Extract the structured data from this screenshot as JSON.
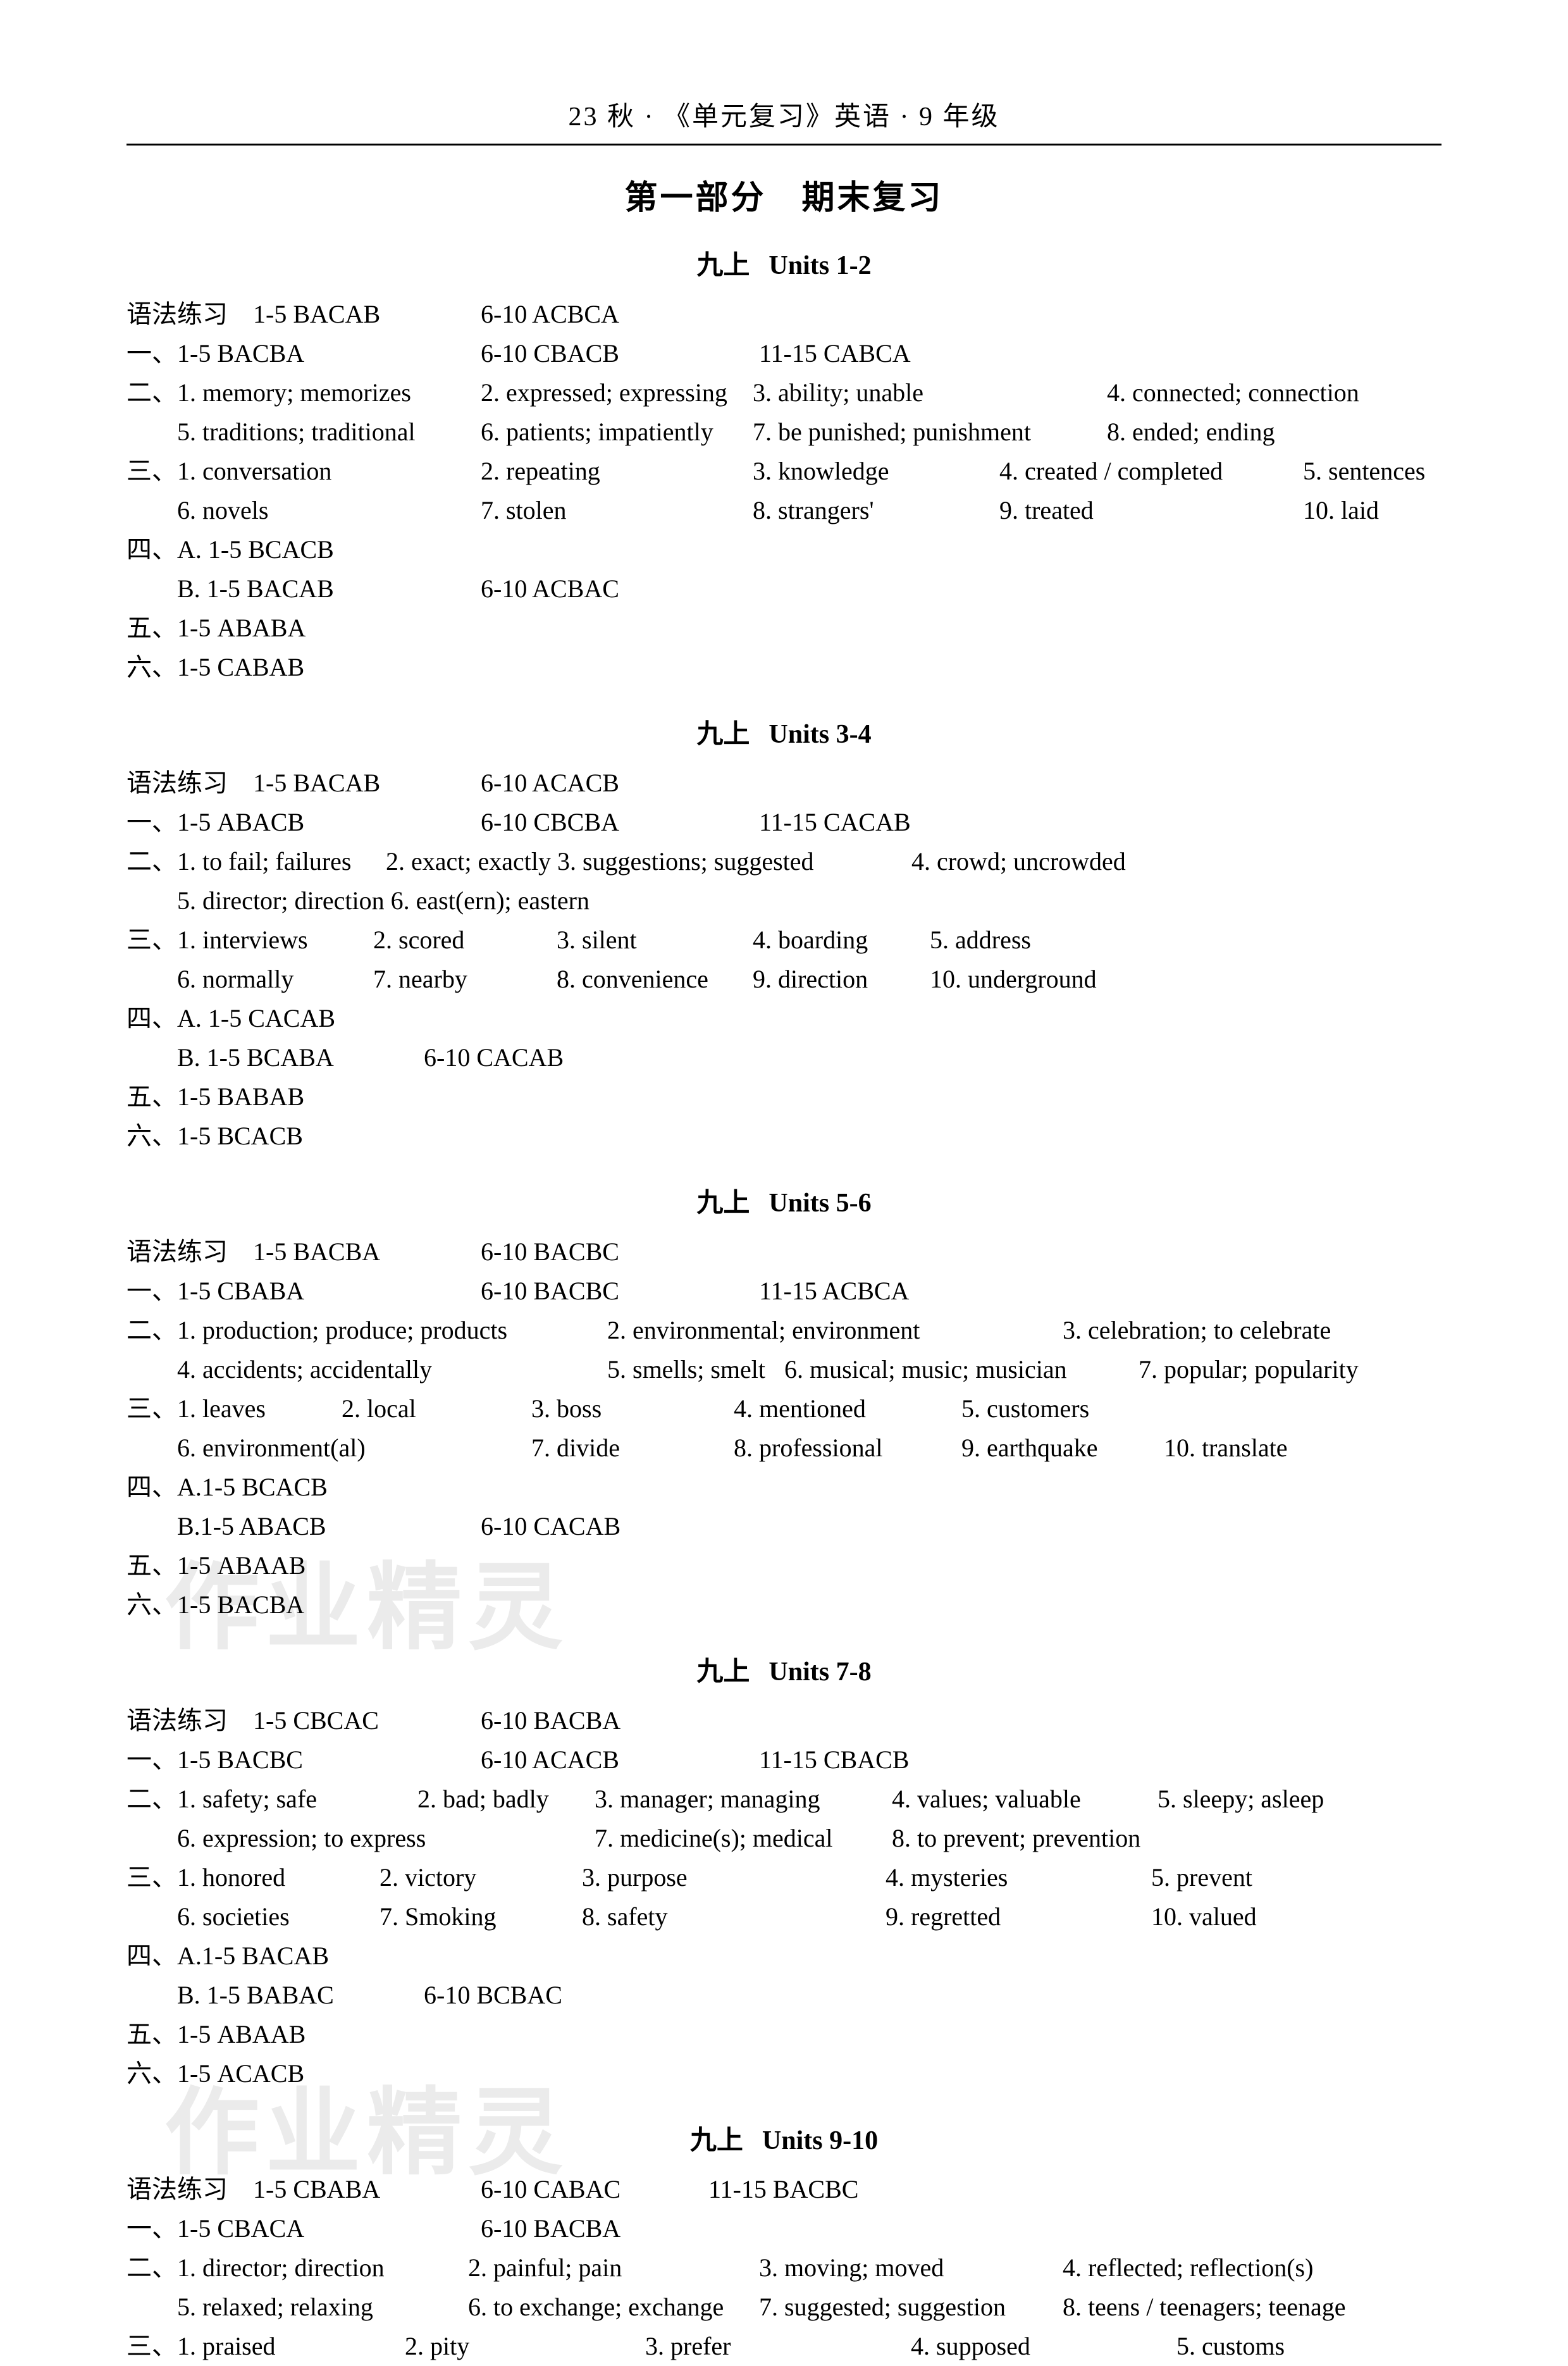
{
  "header": "23 秋 · 《单元复习》英语 · 9 年级",
  "part_title": "第一部分　期末复习",
  "watermark": "作业精灵",
  "sections": [
    {
      "title_cn": "九上",
      "title_en": "Units 1-2",
      "lines": [
        [
          [
            "语法练习　1-5 BACAB",
            560
          ],
          [
            "6-10 ACBCA",
            0
          ]
        ],
        [
          [
            "一、1-5 BACBA",
            560
          ],
          [
            "6-10 CBACB",
            440
          ],
          [
            "11-15 CABCA",
            0
          ]
        ],
        [
          [
            "二、1. memory; memorizes",
            560
          ],
          [
            "2. expressed; expressing ",
            430
          ],
          [
            "3. ability; unable",
            560
          ],
          [
            "4. connected; connection",
            0
          ]
        ],
        [
          [
            "　　5. traditions; traditional",
            560
          ],
          [
            "6. patients; impatiently",
            430
          ],
          [
            "7. be punished; punishment",
            560
          ],
          [
            "8. ended; ending",
            0
          ]
        ],
        [
          [
            "三、1. conversation",
            560
          ],
          [
            "2. repeating",
            430
          ],
          [
            "3. knowledge",
            390
          ],
          [
            "4. created / completed",
            480
          ],
          [
            "5. sentences",
            0
          ]
        ],
        [
          [
            "　　6. novels",
            560
          ],
          [
            "7. stolen",
            430
          ],
          [
            "8. strangers'",
            390
          ],
          [
            "9. treated",
            480
          ],
          [
            "10. laid",
            0
          ]
        ],
        [
          [
            "四、A. 1-5 BCACB",
            0
          ]
        ],
        [
          [
            "　　B. 1-5 BACAB",
            560
          ],
          [
            "6-10 ACBAC",
            0
          ]
        ],
        [
          [
            "五、1-5 ABABA",
            0
          ]
        ],
        [
          [
            "六、1-5 CABAB",
            0
          ]
        ]
      ]
    },
    {
      "title_cn": "九上",
      "title_en": "Units 3-4",
      "lines": [
        [
          [
            "语法练习　1-5 BACAB",
            560
          ],
          [
            "6-10 ACACB",
            0
          ]
        ],
        [
          [
            "一、1-5 ABACB",
            560
          ],
          [
            "6-10 CBCBA",
            440
          ],
          [
            "11-15 CACAB",
            0
          ]
        ],
        [
          [
            "二、1. to fail; failures",
            410
          ],
          [
            "2. exact; exactly ",
            270
          ],
          [
            "3. suggestions; suggested",
            560
          ],
          [
            "4. crowd; uncrowded",
            0
          ]
        ],
        [
          [
            "　　5. director; direction ",
            410
          ],
          [
            "6. east(ern); eastern",
            0
          ]
        ],
        [
          [
            "三、1. interviews",
            390
          ],
          [
            "2. scored",
            290
          ],
          [
            "3. silent",
            310
          ],
          [
            "4. boarding",
            280
          ],
          [
            "5. address",
            0
          ]
        ],
        [
          [
            "　　6. normally",
            390
          ],
          [
            "7. nearby",
            290
          ],
          [
            "8. convenience ",
            310
          ],
          [
            "9. direction",
            280
          ],
          [
            "10. underground",
            0
          ]
        ],
        [
          [
            "四、A. 1-5 CACAB",
            0
          ]
        ],
        [
          [
            "　　B. 1-5 BCABA",
            470
          ],
          [
            "6-10 CACAB",
            0
          ]
        ],
        [
          [
            "五、1-5 BABAB",
            0
          ]
        ],
        [
          [
            "六、1-5 BCACB",
            0
          ]
        ]
      ]
    },
    {
      "title_cn": "九上",
      "title_en": "Units 5-6",
      "lines": [
        [
          [
            "语法练习　1-5 BACBA",
            560
          ],
          [
            "6-10 BACBC",
            0
          ]
        ],
        [
          [
            "一、1-5 CBABA",
            560
          ],
          [
            "6-10 BACBC",
            440
          ],
          [
            "11-15 ACBCA",
            0
          ]
        ],
        [
          [
            "二、1. production; produce; products",
            760
          ],
          [
            "2. environmental; environment",
            720
          ],
          [
            "3. celebration; to celebrate",
            0
          ]
        ],
        [
          [
            "　　4. accidents; accidentally",
            760
          ],
          [
            "5. smells; smelt ",
            280
          ],
          [
            "6. musical; music; musician",
            560
          ],
          [
            "7. popular; popularity",
            0
          ]
        ],
        [
          [
            "三、1. leaves",
            340
          ],
          [
            "2. local",
            300
          ],
          [
            "3. boss",
            320
          ],
          [
            "4. mentioned",
            360
          ],
          [
            "5. customers",
            0
          ]
        ],
        [
          [
            "　　6. environment(al)",
            640
          ],
          [
            "7. divide",
            320
          ],
          [
            "8. professional",
            360
          ],
          [
            "9. earthquake",
            320
          ],
          [
            "10. translate",
            0
          ]
        ],
        [
          [
            "四、A.1-5 BCACB",
            0
          ]
        ],
        [
          [
            "　　B.1-5 ABACB",
            560
          ],
          [
            "6-10 CACAB",
            0
          ]
        ],
        [
          [
            "五、1-5 ABAAB",
            0
          ]
        ],
        [
          [
            "六、1-5 BACBA",
            0
          ]
        ]
      ]
    },
    {
      "title_cn": "九上",
      "title_en": "Units 7-8",
      "lines": [
        [
          [
            "语法练习　1-5 CBCAC",
            560
          ],
          [
            "6-10 BACBA",
            0
          ]
        ],
        [
          [
            "一、1-5 BACBC",
            560
          ],
          [
            "6-10 ACACB",
            440
          ],
          [
            "11-15 CBACB",
            0
          ]
        ],
        [
          [
            "二、1. safety; safe",
            460
          ],
          [
            "2. bad; badly",
            280
          ],
          [
            "3. manager; managing",
            470
          ],
          [
            "4. values; valuable",
            420
          ],
          [
            "5. sleepy; asleep",
            0
          ]
        ],
        [
          [
            "　　6. expression; to express",
            740
          ],
          [
            "7. medicine(s); medical",
            470
          ],
          [
            "8. to prevent; prevention",
            0
          ]
        ],
        [
          [
            "三、1. honored",
            400
          ],
          [
            "2. victory",
            320
          ],
          [
            "3. purpose",
            480
          ],
          [
            "4. mysteries",
            420
          ],
          [
            "5. prevent",
            0
          ]
        ],
        [
          [
            "　　6. societies",
            400
          ],
          [
            "7. Smoking",
            320
          ],
          [
            "8. safety",
            480
          ],
          [
            "9. regretted",
            420
          ],
          [
            "10. valued",
            0
          ]
        ],
        [
          [
            "四、A.1-5 BACAB",
            0
          ]
        ],
        [
          [
            "　　B. 1-5 BABAC",
            470
          ],
          [
            "6-10 BCBAC",
            0
          ]
        ],
        [
          [
            "五、1-5 ABAAB",
            0
          ]
        ],
        [
          [
            "六、1-5 ACACB",
            0
          ]
        ]
      ]
    },
    {
      "title_cn": "九上",
      "title_en": "Units 9-10",
      "lines": [
        [
          [
            "语法练习　1-5 CBABA",
            560
          ],
          [
            "6-10 CABAC",
            360
          ],
          [
            "11-15 BACBC",
            0
          ]
        ],
        [
          [
            "一、1-5 CBACA",
            560
          ],
          [
            "6-10 BACBA",
            0
          ]
        ],
        [
          [
            "二、1. director; direction",
            540
          ],
          [
            "2. painful; pain",
            460
          ],
          [
            "3. moving; moved",
            480
          ],
          [
            "4. reflected; reflection(s)",
            0
          ]
        ],
        [
          [
            "　　5. relaxed; relaxing",
            540
          ],
          [
            "6. to exchange; exchange",
            460
          ],
          [
            "7. suggested; suggestion",
            480
          ],
          [
            "8. teens / teenagers; teenage",
            0
          ]
        ],
        [
          [
            "三、1. praised",
            440
          ],
          [
            "2. pity",
            380
          ],
          [
            "3. prefer",
            420
          ],
          [
            "4. supposed",
            420
          ],
          [
            "5. customs",
            0
          ]
        ]
      ]
    }
  ]
}
